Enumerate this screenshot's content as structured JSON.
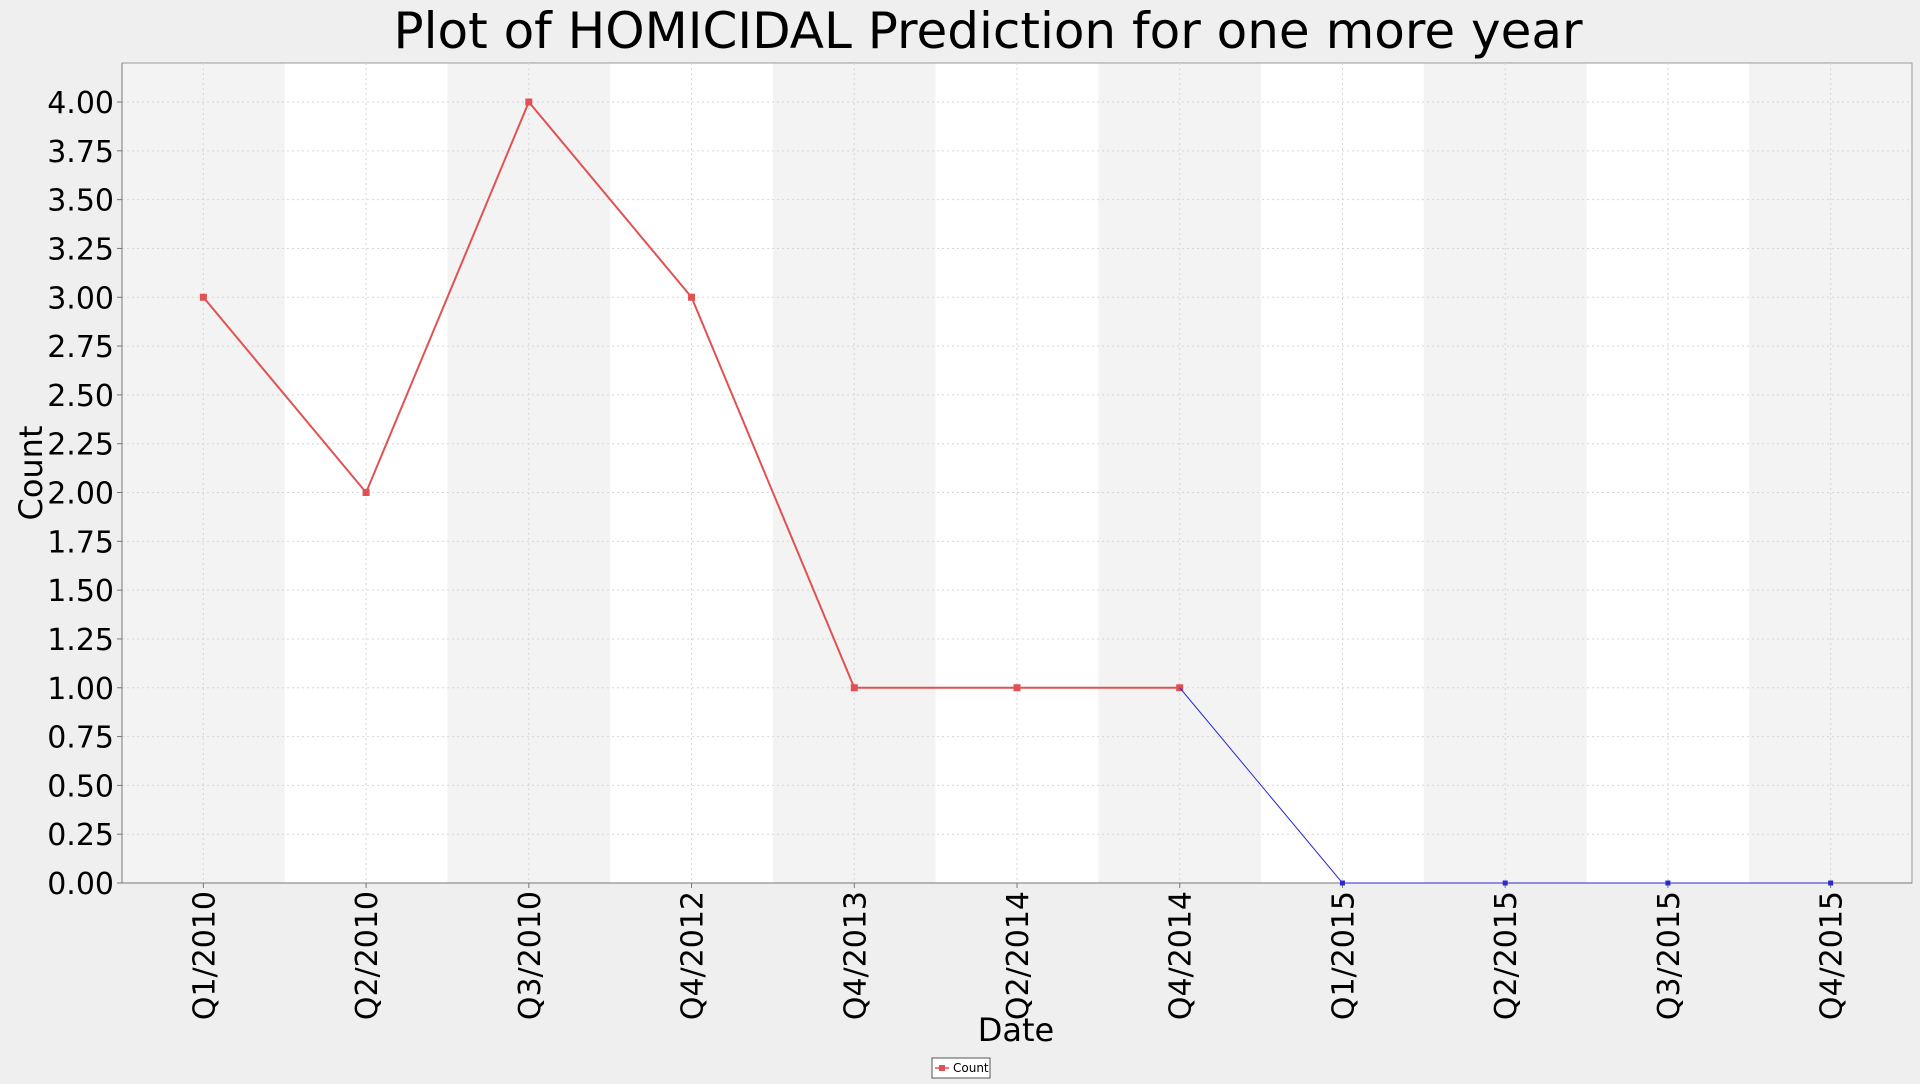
{
  "chart_data": {
    "type": "line",
    "title": "Plot of HOMICIDAL Prediction for one more year",
    "xlabel": "Date",
    "ylabel": "Count",
    "categories": [
      "Q1/2010",
      "Q2/2010",
      "Q3/2010",
      "Q4/2012",
      "Q4/2013",
      "Q2/2014",
      "Q4/2014",
      "Q1/2015",
      "Q2/2015",
      "Q3/2015",
      "Q4/2015"
    ],
    "series": [
      {
        "name": "Count",
        "color": "#e05252",
        "values": [
          3,
          2,
          4,
          3,
          1,
          1,
          1,
          null,
          null,
          null,
          null
        ]
      },
      {
        "name": "",
        "color": "#2a2acf",
        "values": [
          null,
          null,
          null,
          null,
          null,
          null,
          1,
          0,
          0,
          0,
          0
        ]
      }
    ],
    "ylim": [
      0,
      4
    ],
    "yticks": [
      "0.00",
      "0.25",
      "0.50",
      "0.75",
      "1.00",
      "1.25",
      "1.50",
      "1.75",
      "2.00",
      "2.25",
      "2.50",
      "2.75",
      "3.00",
      "3.25",
      "3.50",
      "3.75",
      "4.00"
    ],
    "grid": true,
    "alternating_bands": true,
    "legend": {
      "position": "bottom-center",
      "entries": [
        "Count"
      ]
    }
  }
}
